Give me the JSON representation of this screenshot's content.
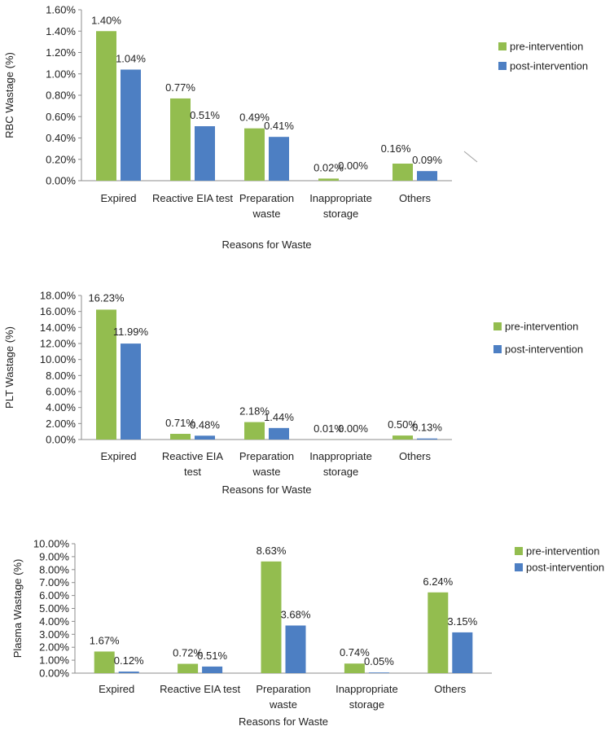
{
  "colors": {
    "pre": "#93bd4f",
    "post": "#4d7fc3"
  },
  "chart_data": [
    {
      "type": "bar",
      "ylabel": "RBC Wastage (%)",
      "xlabel": "Reasons for Waste",
      "categories": [
        [
          "Expired"
        ],
        [
          "Reactive EIA test"
        ],
        [
          "Preparation",
          "waste"
        ],
        [
          "Inappropriate",
          "storage"
        ],
        [
          "Others"
        ]
      ],
      "yticks": [
        "0.00%",
        "0.20%",
        "0.40%",
        "0.60%",
        "0.80%",
        "1.00%",
        "1.20%",
        "1.40%",
        "1.60%"
      ],
      "ylim": [
        0,
        1.6
      ],
      "series": [
        {
          "name": "pre-intervention",
          "values": [
            1.4,
            0.77,
            0.49,
            0.02,
            0.16
          ],
          "labels": [
            "1.40%",
            "0.77%",
            "0.49%",
            "0.02%",
            "0.16%"
          ]
        },
        {
          "name": "post-intervention",
          "values": [
            1.04,
            0.51,
            0.41,
            0.0,
            0.09
          ],
          "labels": [
            "1.04%",
            "0.51%",
            "0.41%",
            "0.00%",
            "0.09%"
          ]
        }
      ],
      "legend": "right"
    },
    {
      "type": "bar",
      "ylabel": "PLT Wastage (%)",
      "xlabel": "Reasons for Waste",
      "categories": [
        [
          "Expired"
        ],
        [
          "Reactive EIA",
          "test"
        ],
        [
          "Preparation",
          "waste"
        ],
        [
          "Inappropriate",
          "storage"
        ],
        [
          "Others"
        ]
      ],
      "yticks": [
        "0.00%",
        "2.00%",
        "4.00%",
        "6.00%",
        "8.00%",
        "10.00%",
        "12.00%",
        "14.00%",
        "16.00%",
        "18.00%"
      ],
      "ylim": [
        0,
        18
      ],
      "series": [
        {
          "name": "pre-intervention",
          "values": [
            16.23,
            0.71,
            2.18,
            0.01,
            0.5
          ],
          "labels": [
            "16.23%",
            "0.71%",
            "2.18%",
            "0.01%",
            "0.50%"
          ]
        },
        {
          "name": "post-intervention",
          "values": [
            11.99,
            0.48,
            1.44,
            0.0,
            0.13
          ],
          "labels": [
            "11.99%",
            "0.48%",
            "1.44%",
            "0.00%",
            "0.13%"
          ]
        }
      ],
      "legend": "right"
    },
    {
      "type": "bar",
      "ylabel": "Plasma Wastage (%)",
      "xlabel": "Reasons for Waste",
      "categories": [
        [
          "Expired"
        ],
        [
          "Reactive EIA test"
        ],
        [
          "Preparation",
          "waste"
        ],
        [
          "Inappropriate",
          "storage"
        ],
        [
          "Others"
        ]
      ],
      "yticks": [
        "0.00%",
        "1.00%",
        "2.00%",
        "3.00%",
        "4.00%",
        "5.00%",
        "6.00%",
        "7.00%",
        "8.00%",
        "9.00%",
        "10.00%"
      ],
      "ylim": [
        0,
        10
      ],
      "series": [
        {
          "name": "pre-intervention",
          "values": [
            1.67,
            0.72,
            8.63,
            0.74,
            6.24
          ],
          "labels": [
            "1.67%",
            "0.72%",
            "8.63%",
            "0.74%",
            "6.24%"
          ]
        },
        {
          "name": "post-intervention",
          "values": [
            0.12,
            0.51,
            3.68,
            0.05,
            3.15
          ],
          "labels": [
            "0.12%",
            "0.51%",
            "3.68%",
            "0.05%",
            "3.15%"
          ]
        }
      ],
      "legend": "top-right"
    }
  ]
}
